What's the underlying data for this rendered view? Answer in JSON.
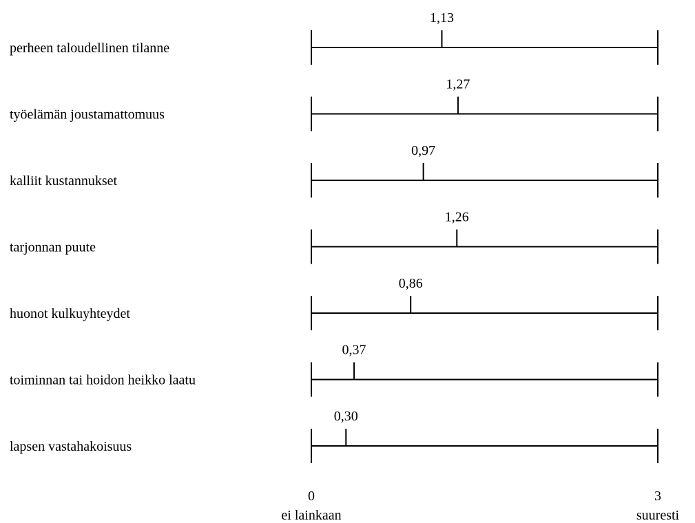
{
  "chart_data": {
    "type": "dot-scale",
    "xlim": [
      0,
      3
    ],
    "rows": [
      {
        "category": "perheen taloudellinen tilanne",
        "value": 1.13,
        "value_label": "1,13"
      },
      {
        "category": "työelämän joustamattomuus",
        "value": 1.27,
        "value_label": "1,27"
      },
      {
        "category": "kalliit kustannukset",
        "value": 0.97,
        "value_label": "0,97"
      },
      {
        "category": "tarjonnan puute",
        "value": 1.26,
        "value_label": "1,26"
      },
      {
        "category": "huonot kulkuyhteydet",
        "value": 0.86,
        "value_label": "0,86"
      },
      {
        "category": "toiminnan tai hoidon heikko laatu",
        "value": 0.37,
        "value_label": "0,37"
      },
      {
        "category": "lapsen vastahakoisuus",
        "value": 0.3,
        "value_label": "0,30"
      }
    ],
    "axis": {
      "min_label": "0",
      "min_caption": "ei lainkaan",
      "max_label": "3",
      "max_caption": "suuresti"
    },
    "colors": {
      "line": "#000000",
      "text": "#000000"
    }
  }
}
